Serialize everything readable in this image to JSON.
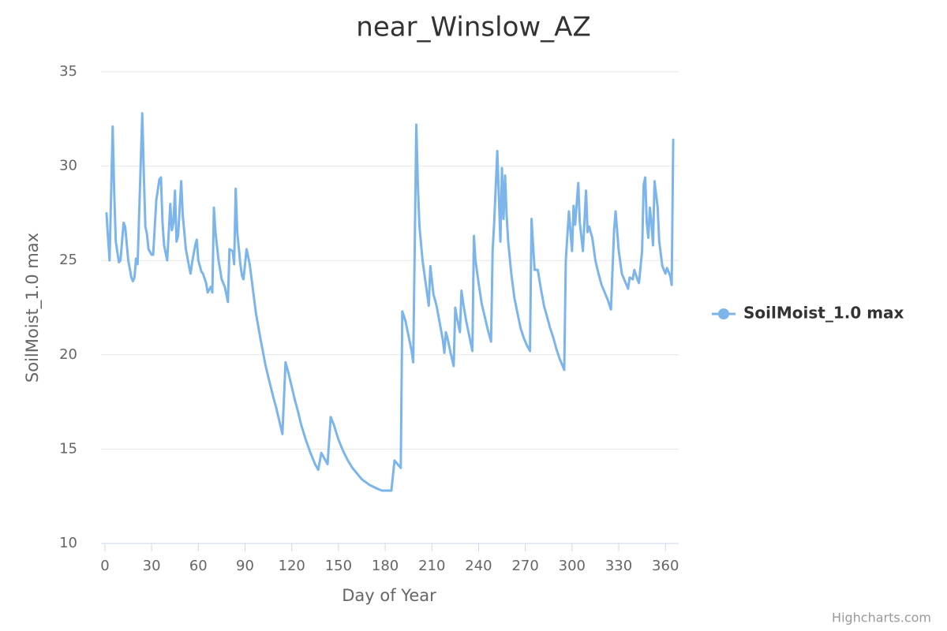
{
  "chart_data": {
    "type": "line",
    "title": "near_Winslow_AZ",
    "x_label": "Day of Year",
    "y_label": "SoilMoist_1.0 max",
    "credits": "Highcharts.com",
    "xlim": [
      -2.5,
      368.5
    ],
    "xticks": [
      0,
      30,
      60,
      90,
      120,
      150,
      180,
      210,
      240,
      270,
      300,
      330,
      360
    ],
    "ylim": [
      10,
      35
    ],
    "yticks": [
      10,
      15,
      20,
      25,
      30,
      35
    ],
    "grid": true,
    "legend": "right",
    "x": [
      1,
      2,
      3,
      5,
      6,
      7,
      9,
      10,
      12,
      13,
      15,
      17,
      18,
      19,
      20,
      21,
      24,
      25,
      26,
      27,
      28,
      30,
      31,
      33,
      35,
      36,
      37,
      38,
      40,
      41,
      42,
      43,
      44,
      45,
      46,
      47,
      49,
      50,
      52,
      54,
      55,
      56,
      58,
      59,
      60,
      62,
      63,
      65,
      66,
      68,
      69,
      70,
      71,
      73,
      75,
      77,
      79,
      80,
      82,
      83,
      84,
      85,
      87,
      88,
      89,
      91,
      93,
      95,
      97,
      100,
      103,
      105,
      108,
      110,
      112,
      114,
      116,
      118,
      120,
      122,
      124,
      126,
      129,
      132,
      135,
      137,
      139,
      141,
      143,
      145,
      147,
      150,
      153,
      156,
      159,
      162,
      165,
      170,
      175,
      178,
      184,
      186,
      188,
      190,
      191,
      193,
      195,
      197,
      198,
      200,
      201,
      202,
      204,
      206,
      208,
      209,
      211,
      213,
      215,
      217,
      218,
      219,
      220,
      222,
      224,
      225,
      226,
      228,
      229,
      230,
      232,
      234,
      236,
      237,
      238,
      240,
      242,
      244,
      246,
      248,
      249,
      250,
      252,
      254,
      255,
      256,
      257,
      258,
      259,
      261,
      263,
      265,
      267,
      269,
      271,
      273,
      274,
      275,
      276,
      278,
      280,
      282,
      284,
      286,
      288,
      290,
      292,
      295,
      296,
      298,
      300,
      301,
      302,
      304,
      305,
      307,
      309,
      310,
      311,
      312,
      313,
      315,
      317,
      319,
      321,
      323,
      325,
      327,
      328,
      330,
      332,
      334,
      336,
      337,
      339,
      340,
      342,
      343,
      345,
      346,
      347,
      348,
      349,
      350,
      351,
      352,
      353,
      354,
      355,
      356,
      358,
      360,
      361,
      363,
      364,
      365
    ],
    "series": [
      {
        "name": "SoilMoist_1.0 max",
        "color": "#7cb5ec",
        "values": [
          27.5,
          26.2,
          25.0,
          32.1,
          28.5,
          26.0,
          24.9,
          25.0,
          27.0,
          26.8,
          25.0,
          24.1,
          23.9,
          24.1,
          25.1,
          24.8,
          32.8,
          29.5,
          26.8,
          26.4,
          25.6,
          25.3,
          25.3,
          28.2,
          29.3,
          29.4,
          27.0,
          25.8,
          25.0,
          26.5,
          28.0,
          26.6,
          27.0,
          28.7,
          26.0,
          26.3,
          29.2,
          27.4,
          25.6,
          24.7,
          24.3,
          24.9,
          25.8,
          26.1,
          25.0,
          24.4,
          24.3,
          23.8,
          23.3,
          23.6,
          23.3,
          27.8,
          26.5,
          25.0,
          24.0,
          23.6,
          22.8,
          25.6,
          25.5,
          24.8,
          28.8,
          26.5,
          24.8,
          24.2,
          24.0,
          25.6,
          24.8,
          23.5,
          22.2,
          20.8,
          19.5,
          18.8,
          17.8,
          17.2,
          16.5,
          15.8,
          19.6,
          19.0,
          18.3,
          17.6,
          17.0,
          16.3,
          15.5,
          14.8,
          14.2,
          13.9,
          14.8,
          14.5,
          14.2,
          16.7,
          16.3,
          15.5,
          14.9,
          14.4,
          14.0,
          13.7,
          13.4,
          13.1,
          12.9,
          12.8,
          12.8,
          14.4,
          14.2,
          14.0,
          22.3,
          21.8,
          21.0,
          20.2,
          19.6,
          32.2,
          29.0,
          26.8,
          25.0,
          23.8,
          22.6,
          24.7,
          23.2,
          22.6,
          21.7,
          20.8,
          20.1,
          21.2,
          20.9,
          20.1,
          19.4,
          22.5,
          22.0,
          21.2,
          23.4,
          22.8,
          21.8,
          21.0,
          20.2,
          26.3,
          25.0,
          23.8,
          22.7,
          22.0,
          21.3,
          20.7,
          25.5,
          27.0,
          30.8,
          26.0,
          29.9,
          27.2,
          29.5,
          27.4,
          26.0,
          24.3,
          23.0,
          22.2,
          21.4,
          20.9,
          20.5,
          20.2,
          27.2,
          25.8,
          24.5,
          24.5,
          23.5,
          22.6,
          22.0,
          21.4,
          20.9,
          20.3,
          19.8,
          19.2,
          25.0,
          27.6,
          25.5,
          27.9,
          26.9,
          29.1,
          27.0,
          25.5,
          28.7,
          26.5,
          26.8,
          26.5,
          26.2,
          25.0,
          24.3,
          23.7,
          23.3,
          22.9,
          22.4,
          26.6,
          27.6,
          25.5,
          24.3,
          23.9,
          23.5,
          24.1,
          24.0,
          24.5,
          24.0,
          23.8,
          25.5,
          29.0,
          29.4,
          27.0,
          26.2,
          27.8,
          27.0,
          25.8,
          29.2,
          28.5,
          27.8,
          26.0,
          24.7,
          24.3,
          24.6,
          24.2,
          23.7,
          31.4
        ]
      }
    ]
  }
}
